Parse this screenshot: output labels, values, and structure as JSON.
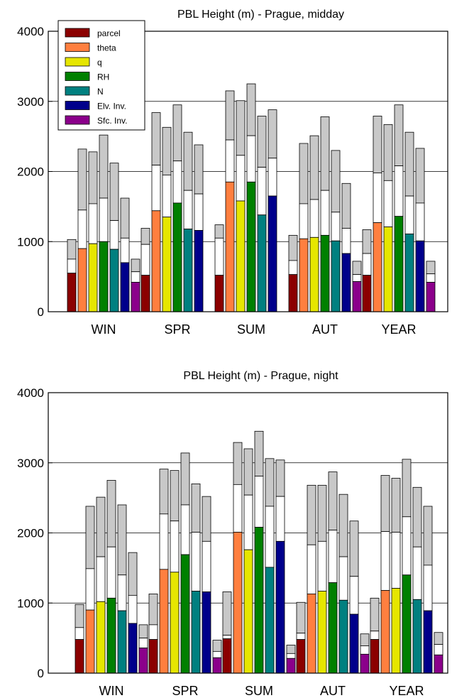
{
  "chart_data": [
    {
      "type": "bar",
      "title": "PBL Height (m) - Prague, midday",
      "categories": [
        "WIN",
        "SPR",
        "SUM",
        "AUT",
        "YEAR"
      ],
      "ylim": [
        0,
        4000
      ],
      "yticks": [
        0,
        1000,
        2000,
        3000,
        4000
      ],
      "grid": "horizontal",
      "legend_position": "top-left",
      "series": [
        {
          "name": "parcel",
          "color": "#8b0000",
          "values": [
            550,
            520,
            520,
            530,
            520
          ],
          "upper": [
            750,
            960,
            1050,
            730,
            830
          ],
          "max": [
            1030,
            1190,
            1240,
            1090,
            1170
          ]
        },
        {
          "name": "theta",
          "color": "#ff7f3f",
          "values": [
            900,
            1440,
            1850,
            1040,
            1270
          ],
          "upper": [
            1450,
            2090,
            2450,
            1540,
            1980
          ],
          "max": [
            2320,
            2840,
            3150,
            2400,
            2790
          ]
        },
        {
          "name": "q",
          "color": "#e6e600",
          "values": [
            970,
            1350,
            1580,
            1060,
            1210
          ],
          "upper": [
            1540,
            1950,
            2230,
            1600,
            1870
          ],
          "max": [
            2280,
            2630,
            3010,
            2510,
            2670
          ]
        },
        {
          "name": "RH",
          "color": "#008000",
          "values": [
            1000,
            1550,
            1850,
            1090,
            1360
          ],
          "upper": [
            1620,
            2150,
            2510,
            1730,
            2080
          ],
          "max": [
            2520,
            2950,
            3250,
            2780,
            2950
          ]
        },
        {
          "name": "N",
          "color": "#008080",
          "values": [
            890,
            1180,
            1380,
            1010,
            1110
          ],
          "upper": [
            1300,
            1730,
            2060,
            1420,
            1650
          ],
          "max": [
            2120,
            2560,
            2790,
            2300,
            2560
          ]
        },
        {
          "name": "Elv. Inv.",
          "color": "#00008b",
          "values": [
            700,
            1160,
            1650,
            830,
            1010
          ],
          "upper": [
            1050,
            1680,
            2190,
            1190,
            1550
          ],
          "max": [
            1620,
            2380,
            2880,
            1830,
            2330
          ]
        },
        {
          "name": "Sfc. Inv.",
          "color": "#8b008b",
          "values": [
            420,
            null,
            null,
            430,
            420
          ],
          "upper": [
            570,
            null,
            null,
            530,
            540
          ],
          "max": [
            750,
            null,
            null,
            720,
            720
          ]
        }
      ]
    },
    {
      "type": "bar",
      "title": "PBL Height (m) - Prague, night",
      "categories": [
        "WIN",
        "SPR",
        "SUM",
        "AUT",
        "YEAR"
      ],
      "ylim": [
        0,
        4000
      ],
      "yticks": [
        0,
        1000,
        2000,
        3000,
        4000
      ],
      "grid": "horizontal",
      "series": [
        {
          "name": "parcel",
          "color": "#8b0000",
          "values": [
            480,
            480,
            490,
            480,
            480
          ],
          "upper": [
            650,
            690,
            540,
            570,
            600
          ],
          "max": [
            980,
            1130,
            1160,
            1010,
            1070
          ]
        },
        {
          "name": "theta",
          "color": "#ff7f3f",
          "values": [
            900,
            1480,
            2010,
            1130,
            1180
          ],
          "upper": [
            1490,
            2270,
            2690,
            1830,
            2020
          ],
          "max": [
            2380,
            2910,
            3290,
            2680,
            2820
          ]
        },
        {
          "name": "q",
          "color": "#e6e600",
          "values": [
            1020,
            1440,
            1760,
            1170,
            1210
          ],
          "upper": [
            1660,
            2170,
            2540,
            1880,
            2010
          ],
          "max": [
            2510,
            2890,
            3200,
            2680,
            2780
          ]
        },
        {
          "name": "RH",
          "color": "#008000",
          "values": [
            1070,
            1690,
            2080,
            1290,
            1400
          ],
          "upper": [
            1800,
            2400,
            2810,
            2040,
            2230
          ],
          "max": [
            2750,
            3140,
            3450,
            2870,
            3050
          ]
        },
        {
          "name": "N",
          "color": "#008080",
          "values": [
            890,
            1170,
            1510,
            1040,
            1050
          ],
          "upper": [
            1400,
            2010,
            2380,
            1660,
            1800
          ],
          "max": [
            2400,
            2700,
            3060,
            2550,
            2650
          ]
        },
        {
          "name": "Elv. Inv.",
          "color": "#00008b",
          "values": [
            710,
            1160,
            1880,
            840,
            890
          ],
          "upper": [
            1110,
            1880,
            2520,
            1380,
            1540
          ],
          "max": [
            1720,
            2520,
            3040,
            2170,
            2380
          ]
        },
        {
          "name": "Sfc. Inv.",
          "color": "#8b008b",
          "values": [
            360,
            220,
            210,
            270,
            260
          ],
          "upper": [
            500,
            310,
            280,
            390,
            410
          ],
          "max": [
            690,
            470,
            400,
            560,
            580
          ]
        }
      ]
    }
  ]
}
